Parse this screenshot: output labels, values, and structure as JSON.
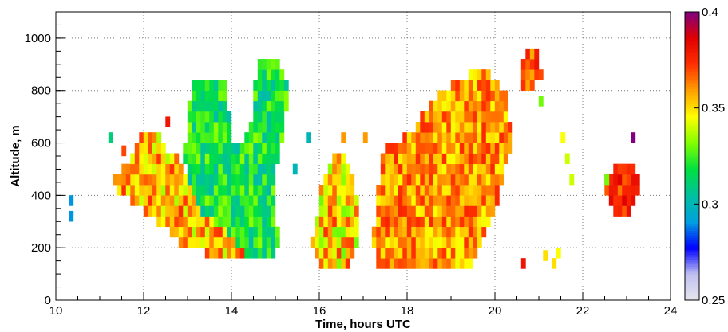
{
  "chart_data": {
    "type": "heatmap",
    "title": "",
    "xlabel": "Time, hours UTC",
    "ylabel": "Altitude, m",
    "xlim": [
      10,
      24
    ],
    "ylim": [
      0,
      1100
    ],
    "x_ticks": [
      "10",
      "12",
      "14",
      "16",
      "18",
      "20",
      "22",
      "24"
    ],
    "y_ticks": [
      "0",
      "200",
      "400",
      "600",
      "800",
      "1000"
    ],
    "grid": true,
    "colorbar": {
      "range": [
        0.25,
        0.4
      ],
      "ticks": [
        "0.25",
        "0.3",
        "0.35",
        "0.4"
      ],
      "colormap": [
        "#e6e6ee",
        "#c0c0f0",
        "#0000ff",
        "#00a0e0",
        "#00c0a0",
        "#00e040",
        "#80ff00",
        "#ffff00",
        "#ffa000",
        "#ff3000",
        "#e00000",
        "#800080"
      ]
    },
    "cell_size": {
      "dx": 0.1,
      "dy": 40
    },
    "regions": [
      {
        "name": "left-blob",
        "polygon": [
          [
            11.3,
            450
          ],
          [
            11.6,
            520
          ],
          [
            11.9,
            640
          ],
          [
            12.3,
            640
          ],
          [
            12.6,
            560
          ],
          [
            12.9,
            520
          ],
          [
            13.1,
            400
          ],
          [
            13.4,
            320
          ],
          [
            14.0,
            250
          ],
          [
            14.3,
            180
          ],
          [
            13.6,
            170
          ],
          [
            12.9,
            200
          ],
          [
            12.5,
            280
          ],
          [
            12.1,
            330
          ],
          [
            11.7,
            380
          ],
          [
            11.4,
            410
          ]
        ],
        "base": 0.355,
        "amp": 0.012
      },
      {
        "name": "green-tower",
        "polygon": [
          [
            12.9,
            560
          ],
          [
            13.0,
            680
          ],
          [
            13.1,
            820
          ],
          [
            13.9,
            830
          ],
          [
            14.0,
            600
          ],
          [
            14.3,
            600
          ],
          [
            14.5,
            730
          ],
          [
            14.6,
            920
          ],
          [
            15.1,
            920
          ],
          [
            15.3,
            800
          ],
          [
            15.2,
            620
          ],
          [
            15.0,
            500
          ],
          [
            15.0,
            330
          ],
          [
            15.1,
            220
          ],
          [
            14.9,
            150
          ],
          [
            14.3,
            150
          ],
          [
            13.8,
            220
          ],
          [
            13.3,
            340
          ],
          [
            13.1,
            400
          ]
        ],
        "base": 0.318,
        "amp": 0.01
      },
      {
        "name": "mid-low",
        "polygon": [
          [
            15.9,
            280
          ],
          [
            16.0,
            400
          ],
          [
            16.3,
            560
          ],
          [
            16.6,
            550
          ],
          [
            16.9,
            380
          ],
          [
            16.9,
            200
          ],
          [
            16.6,
            120
          ],
          [
            16.0,
            120
          ],
          [
            15.8,
            200
          ]
        ],
        "base": 0.352,
        "amp": 0.014
      },
      {
        "name": "main-blob",
        "polygon": [
          [
            17.2,
            200
          ],
          [
            17.3,
            400
          ],
          [
            17.5,
            590
          ],
          [
            18.1,
            640
          ],
          [
            18.6,
            760
          ],
          [
            19.2,
            850
          ],
          [
            19.8,
            880
          ],
          [
            20.3,
            770
          ],
          [
            20.4,
            600
          ],
          [
            20.1,
            400
          ],
          [
            19.7,
            200
          ],
          [
            19.4,
            120
          ],
          [
            17.4,
            120
          ]
        ],
        "base": 0.36,
        "amp": 0.01
      },
      {
        "name": "top-right",
        "polygon": [
          [
            20.6,
            820
          ],
          [
            20.7,
            980
          ],
          [
            21.0,
            950
          ],
          [
            21.1,
            850
          ],
          [
            20.9,
            810
          ]
        ],
        "base": 0.37,
        "amp": 0.008
      },
      {
        "name": "far-right",
        "polygon": [
          [
            22.4,
            450
          ],
          [
            22.6,
            360
          ],
          [
            22.8,
            300
          ],
          [
            23.1,
            330
          ],
          [
            23.3,
            440
          ],
          [
            23.2,
            520
          ],
          [
            22.8,
            520
          ]
        ],
        "base": 0.375,
        "amp": 0.008
      }
    ],
    "scatter_cells": [
      [
        10.3,
        300,
        0.29
      ],
      [
        10.3,
        360,
        0.29
      ],
      [
        11.2,
        600,
        0.31
      ],
      [
        11.5,
        550,
        0.37
      ],
      [
        12.5,
        660,
        0.38
      ],
      [
        15.7,
        600,
        0.3
      ],
      [
        15.4,
        480,
        0.3
      ],
      [
        16.5,
        600,
        0.36
      ],
      [
        17.0,
        600,
        0.36
      ],
      [
        21.5,
        600,
        0.345
      ],
      [
        21.6,
        520,
        0.34
      ],
      [
        21.7,
        440,
        0.34
      ],
      [
        21.4,
        160,
        0.345
      ],
      [
        21.1,
        150,
        0.35
      ],
      [
        21.3,
        120,
        0.35
      ],
      [
        20.6,
        120,
        0.38
      ],
      [
        21.0,
        740,
        0.33
      ],
      [
        23.1,
        600,
        0.4
      ],
      [
        22.5,
        440,
        0.33
      ]
    ]
  }
}
